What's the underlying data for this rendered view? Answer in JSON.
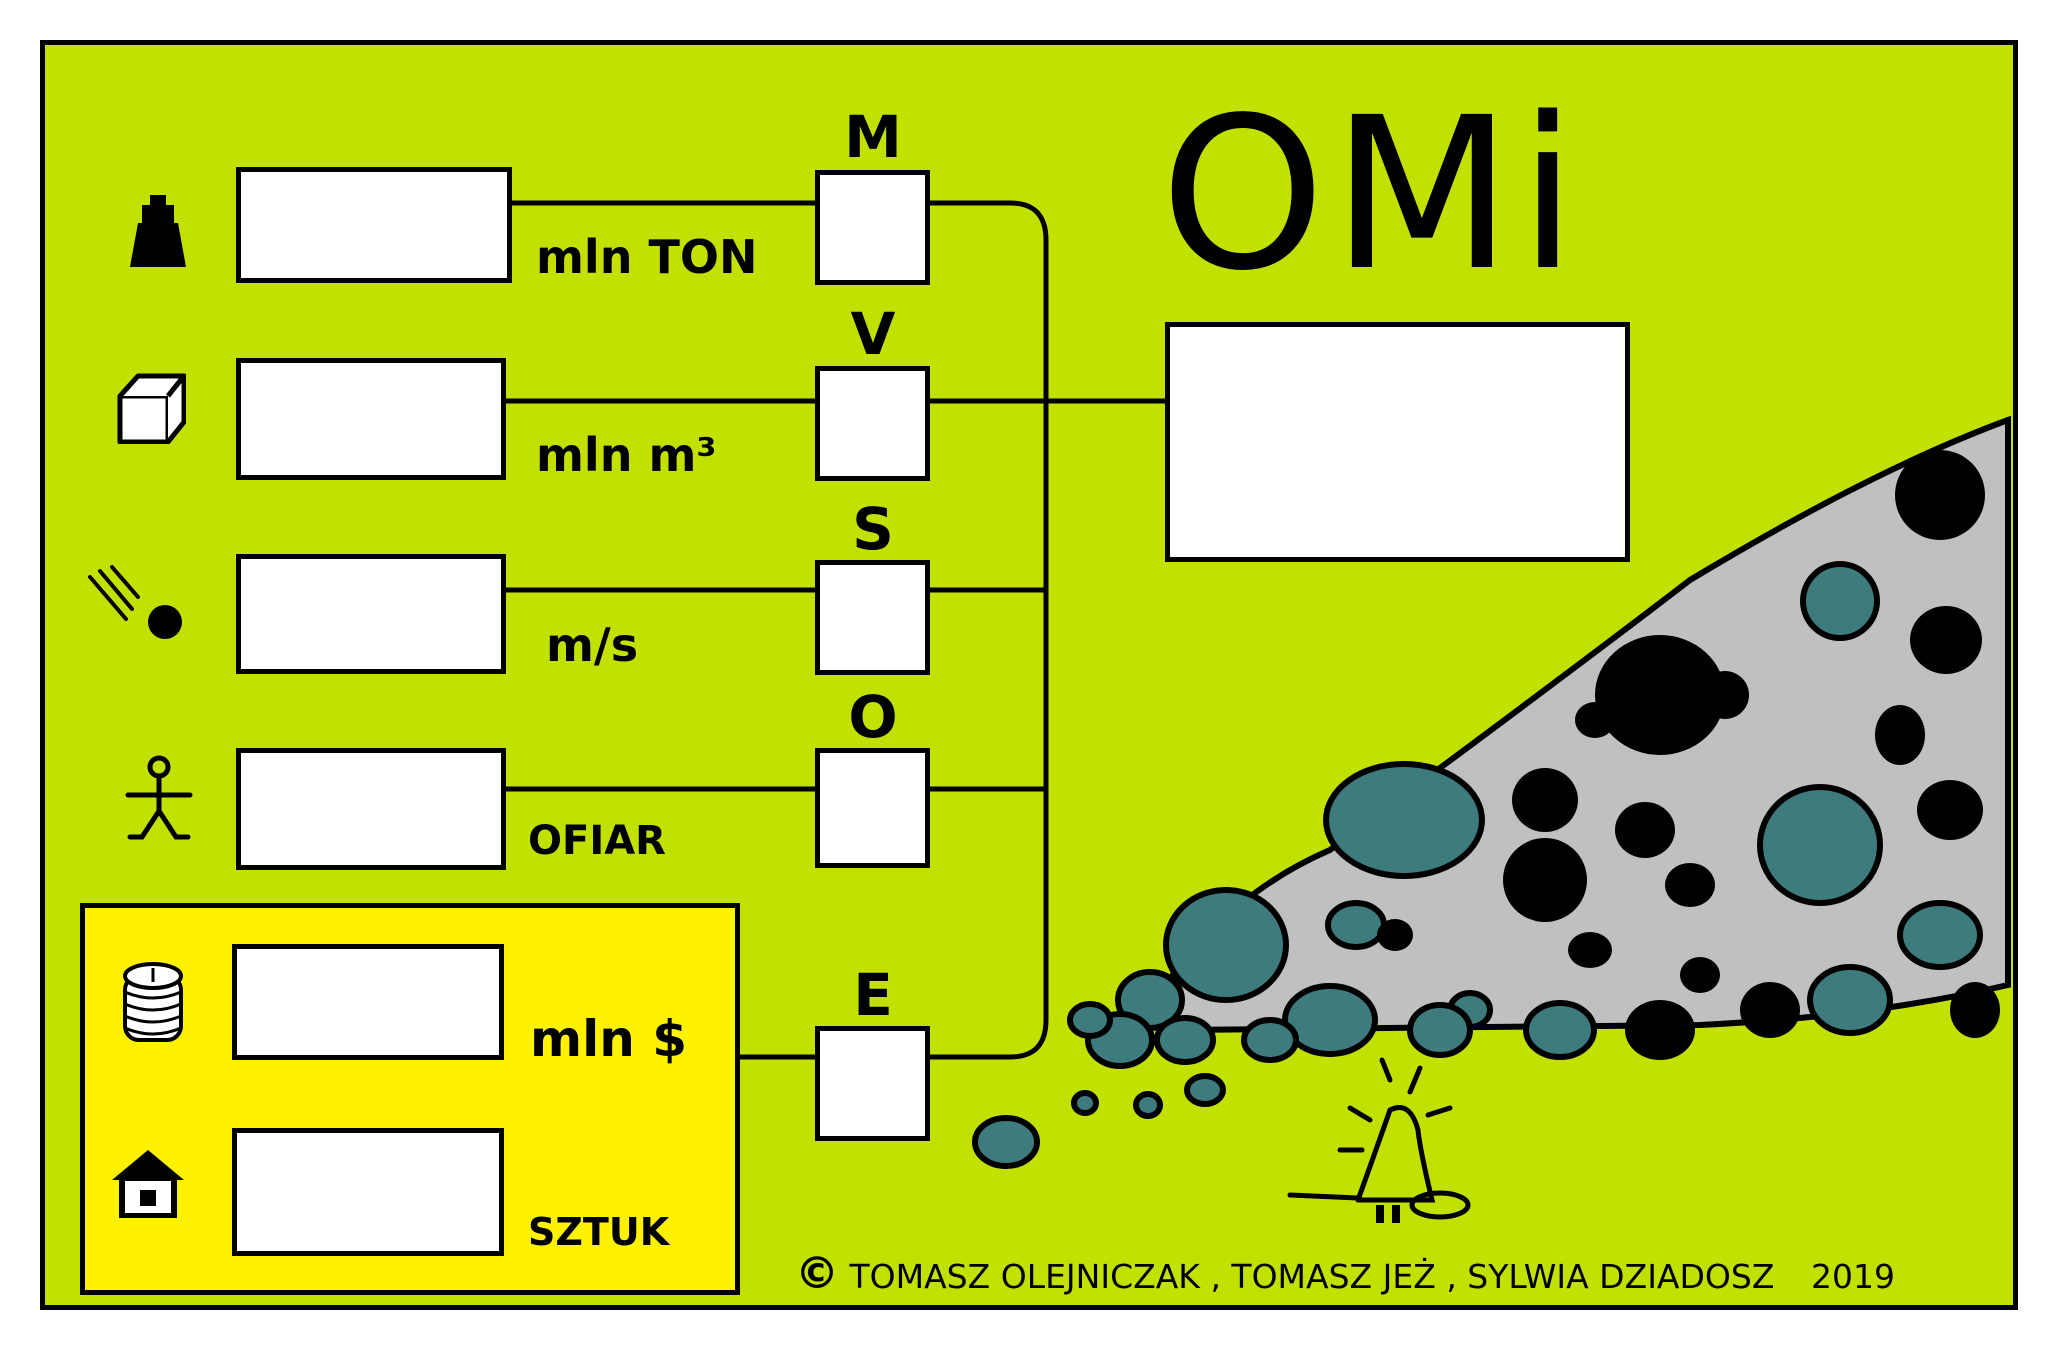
{
  "title": "OMi",
  "rows": [
    {
      "unit": "mln TON",
      "letter": "M",
      "icon": "weight-icon"
    },
    {
      "unit": "mln m³",
      "letter": "V",
      "icon": "cube-icon"
    },
    {
      "unit": "m/s",
      "letter": "S",
      "icon": "meteor-icon"
    },
    {
      "unit": "OFIAR",
      "letter": "O",
      "icon": "person-icon"
    },
    {
      "unit": "mln $",
      "letter": "E",
      "icon": "coins-icon"
    },
    {
      "unit": "SZTUK",
      "icon": "house-icon"
    }
  ],
  "credit": {
    "symbol": "©",
    "text": "TOMASZ OLEJNICZAK , TOMASZ JEŻ , SYLWIA DZIADOSZ",
    "year": "2019"
  },
  "colors": {
    "background": "#c3e100",
    "yellow_panel": "#fff200",
    "rock_pile": "#c0c0c0",
    "teal_rock": "#3d7b7d"
  }
}
